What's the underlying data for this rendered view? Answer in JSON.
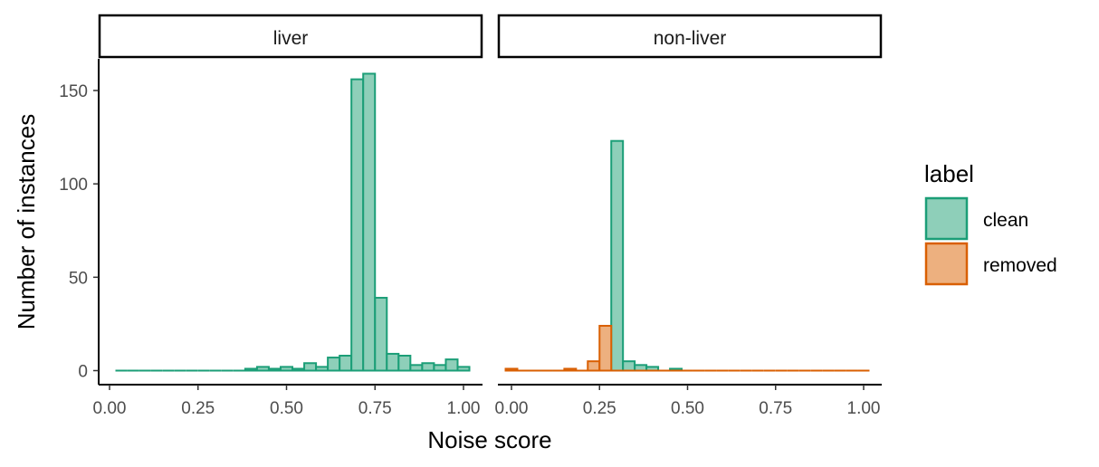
{
  "chart_data": {
    "type": "histogram",
    "xlabel": "Noise score",
    "ylabel": "Number of instances",
    "xlim": [
      0.0,
      1.0
    ],
    "ylim": [
      0,
      165
    ],
    "x_ticks": [
      0.0,
      0.25,
      0.5,
      0.75,
      1.0
    ],
    "x_tick_labels": [
      "0.00",
      "0.25",
      "0.50",
      "0.75",
      "1.00"
    ],
    "y_ticks": [
      0,
      50,
      100,
      150
    ],
    "y_tick_labels": [
      "0",
      "50",
      "100",
      "150"
    ],
    "bin_width": 0.0333,
    "legend": {
      "title": "label",
      "position": "right",
      "items": [
        {
          "label": "clean",
          "fill": "#8ecfb9",
          "stroke": "#1b9e77"
        },
        {
          "label": "removed",
          "fill": "#edb07f",
          "stroke": "#d95f02"
        }
      ]
    },
    "facets": [
      {
        "strip": "liver",
        "series": [
          {
            "name": "clean",
            "centers": [
              0.0333,
              0.0667,
              0.1,
              0.1333,
              0.1667,
              0.2,
              0.2333,
              0.2667,
              0.3,
              0.3333,
              0.3667,
              0.4,
              0.4333,
              0.4667,
              0.5,
              0.5333,
              0.5667,
              0.6,
              0.6333,
              0.6667,
              0.7,
              0.7333,
              0.7667,
              0.8,
              0.8333,
              0.8667,
              0.9,
              0.9333,
              0.9667,
              1.0
            ],
            "values": [
              0,
              0,
              0,
              0,
              0,
              0,
              0,
              0,
              0,
              0,
              0,
              1,
              2,
              1,
              2,
              1,
              4,
              2,
              7,
              8,
              156,
              159,
              39,
              9,
              8,
              3,
              4,
              3,
              6,
              2
            ]
          }
        ]
      },
      {
        "strip": "non-liver",
        "series": [
          {
            "name": "clean",
            "centers": [
              0.0,
              0.0333,
              0.0667,
              0.1,
              0.1333,
              0.1667,
              0.2,
              0.2333,
              0.2667,
              0.3,
              0.3333,
              0.3667,
              0.4,
              0.4333,
              0.4667
            ],
            "values": [
              0,
              0,
              0,
              0,
              0,
              0,
              0,
              0,
              1,
              123,
              5,
              3,
              2,
              0,
              1
            ]
          },
          {
            "name": "removed",
            "centers": [
              0.0,
              0.0333,
              0.0667,
              0.1,
              0.1333,
              0.1667,
              0.2,
              0.2333,
              0.2667,
              0.3,
              0.3333,
              0.3667,
              0.4,
              0.4333,
              0.4667,
              0.5,
              0.5333,
              0.5667,
              0.6,
              0.6333,
              0.6667,
              0.7,
              0.7333,
              0.7667,
              0.8,
              0.8333,
              0.8667,
              0.9,
              0.9333,
              0.9667,
              1.0
            ],
            "values": [
              1,
              0,
              0,
              0,
              0,
              1,
              0,
              5,
              24,
              0,
              0,
              0,
              0,
              0,
              0,
              0,
              0,
              0,
              0,
              0,
              0,
              0,
              0,
              0,
              0,
              0,
              0,
              0,
              0,
              0,
              0
            ]
          }
        ]
      }
    ]
  }
}
